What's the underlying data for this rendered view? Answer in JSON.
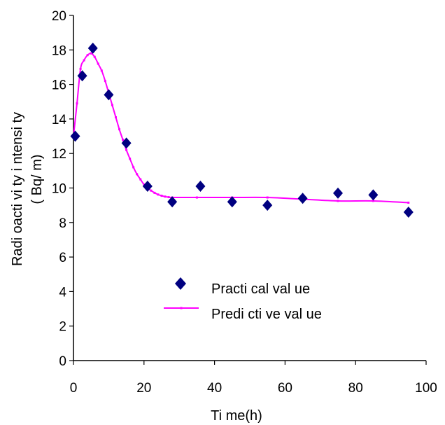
{
  "chart_data": {
    "type": "scatter",
    "xlabel": "Ti me(h)",
    "ylabel": "Radi oacti vi ty i ntensi ty",
    "ylabel_unit": "( Bq/ m)",
    "xlim": [
      0,
      100
    ],
    "ylim": [
      0,
      20
    ],
    "xticks": [
      0,
      20,
      40,
      60,
      80,
      100
    ],
    "yticks": [
      0,
      2,
      4,
      6,
      8,
      10,
      12,
      14,
      16,
      18,
      20
    ],
    "grid": false,
    "legend_position": "center",
    "series": [
      {
        "name": "Practi cal val ue",
        "kind": "scatter",
        "marker": "diamond",
        "color": "#000080",
        "x": [
          0.5,
          2.5,
          5.5,
          10,
          15,
          21,
          28,
          36,
          45,
          55,
          65,
          75,
          85,
          95
        ],
        "y": [
          13.0,
          16.5,
          18.1,
          15.4,
          12.6,
          10.1,
          9.2,
          10.1,
          9.2,
          9.0,
          9.4,
          9.7,
          9.6,
          8.6
        ]
      },
      {
        "name": "Predi cti ve val ue",
        "kind": "line",
        "color": "#ff00ff",
        "x": [
          0,
          1,
          2,
          3,
          4,
          5,
          6,
          7,
          8,
          9,
          10,
          11,
          12,
          13,
          14,
          15,
          16,
          17,
          18,
          19,
          20,
          21,
          22,
          23,
          24,
          25,
          26,
          27,
          28,
          35,
          45,
          55,
          65,
          75,
          85,
          95
        ],
        "y": [
          13.0,
          14.9,
          16.9,
          17.4,
          17.7,
          17.8,
          17.6,
          17.2,
          16.8,
          16.2,
          15.5,
          14.8,
          14.1,
          13.4,
          12.8,
          12.2,
          11.7,
          11.2,
          10.8,
          10.5,
          10.2,
          10.0,
          9.85,
          9.72,
          9.62,
          9.55,
          9.5,
          9.47,
          9.45,
          9.45,
          9.45,
          9.45,
          9.35,
          9.25,
          9.25,
          9.15
        ],
        "marked_x": [
          1,
          2,
          3,
          4,
          5,
          6,
          7,
          8,
          9,
          10,
          11,
          12,
          13,
          14,
          15,
          16,
          17,
          18,
          19,
          20,
          21,
          22,
          23,
          24,
          25,
          26,
          27,
          28,
          35,
          45,
          55,
          65,
          75,
          85,
          95
        ]
      }
    ]
  }
}
